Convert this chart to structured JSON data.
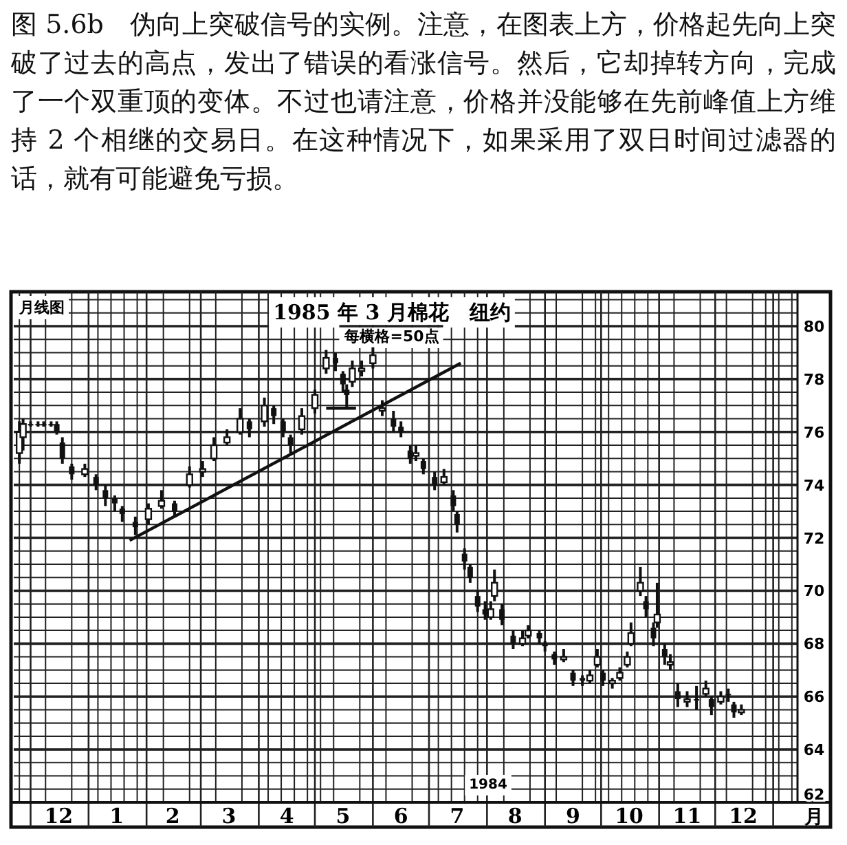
{
  "chart_data": {
    "type": "candlestick",
    "title": "图 5.6b　伪向上突破信号的实例。注意，在图表上方，价格起先向上突破了过去的高点，发出了错误的看涨信号。然后，它却掉转方向，完成了一个双重顶的变体。不过也请注意，价格并没能够在先前峰值上方维持 2 个相继的交易日。在这种情况下，如果采用了双日时间过滤器的话，就有可能避免亏损。",
    "subtitle": "1985 年 3 月棉花　纽约",
    "xlabel": "月",
    "annotations": [
      "每横格=50点",
      "月线图",
      "1984"
    ],
    "x": [
      "1983-11-25",
      "1983-11-27",
      "1983-12-01",
      "1983-12-05",
      "1983-12-08",
      "1983-12-12",
      "1983-12-15",
      "1983-12-18",
      "1983-12-23",
      "1983-12-30",
      "1984-01-05",
      "1984-01-10",
      "1984-01-15",
      "1984-01-19",
      "1984-01-26",
      "1984-02-02",
      "1984-02-09",
      "1984-02-16",
      "1984-02-24",
      "1984-03-02",
      "1984-03-08",
      "1984-03-15",
      "1984-03-22",
      "1984-03-27",
      "1984-04-04",
      "1984-04-09",
      "1984-04-14",
      "1984-04-18",
      "1984-04-24",
      "1984-05-01",
      "1984-05-07",
      "1984-05-12",
      "1984-05-16",
      "1984-05-18",
      "1984-05-21",
      "1984-05-26",
      "1984-06-01",
      "1984-06-06",
      "1984-06-12",
      "1984-06-16",
      "1984-06-21",
      "1984-06-24",
      "1984-06-28",
      "1984-07-04",
      "1984-07-09",
      "1984-07-14",
      "1984-07-16",
      "1984-07-20",
      "1984-07-23",
      "1984-07-27",
      "1984-07-31",
      "1984-08-03",
      "1984-08-05",
      "1984-08-09",
      "1984-08-15",
      "1984-08-20",
      "1984-08-23",
      "1984-08-29",
      "1984-09-01",
      "1984-09-06",
      "1984-09-11",
      "1984-09-16",
      "1984-09-21",
      "1984-09-25",
      "1984-09-29",
      "1984-10-02",
      "1984-10-07",
      "1984-10-11",
      "1984-10-15",
      "1984-10-17",
      "1984-10-22",
      "1984-10-25",
      "1984-10-29",
      "1984-10-31",
      "1984-11-04",
      "1984-11-07",
      "1984-11-11",
      "1984-11-16",
      "1984-11-21",
      "1984-11-26",
      "1984-11-29",
      "1984-12-04",
      "1984-12-08",
      "1984-12-11",
      "1984-12-15"
    ],
    "ohlc": [
      [
        75.2,
        76.4,
        74.8,
        76.0
      ],
      [
        75.8,
        76.5,
        75.3,
        76.3
      ],
      [
        76.3,
        76.4,
        76.2,
        76.3
      ],
      [
        76.3,
        76.4,
        76.2,
        76.3
      ],
      [
        76.3,
        76.4,
        76.2,
        76.3
      ],
      [
        76.3,
        76.4,
        76.2,
        76.3
      ],
      [
        76.3,
        76.4,
        75.9,
        76.0
      ],
      [
        75.6,
        75.8,
        74.8,
        75.0
      ],
      [
        74.7,
        74.8,
        74.2,
        74.4
      ],
      [
        74.4,
        74.8,
        74.3,
        74.6
      ],
      [
        74.3,
        74.4,
        73.8,
        74.0
      ],
      [
        73.8,
        74.0,
        73.2,
        73.5
      ],
      [
        73.5,
        73.6,
        73.0,
        73.3
      ],
      [
        73.1,
        73.2,
        72.6,
        72.9
      ],
      [
        72.6,
        72.8,
        72.1,
        72.4
      ],
      [
        72.7,
        73.3,
        72.5,
        73.1
      ],
      [
        73.2,
        73.8,
        73.1,
        73.4
      ],
      [
        73.3,
        73.4,
        72.8,
        73.0
      ],
      [
        74.0,
        74.7,
        73.9,
        74.4
      ],
      [
        74.5,
        74.9,
        74.3,
        74.6
      ],
      [
        75.0,
        75.8,
        74.9,
        75.5
      ],
      [
        75.6,
        76.1,
        75.5,
        75.8
      ],
      [
        76.0,
        76.9,
        75.9,
        76.5
      ],
      [
        76.4,
        76.5,
        75.8,
        76.1
      ],
      [
        76.4,
        77.3,
        76.2,
        77.0
      ],
      [
        76.9,
        77.0,
        76.3,
        76.6
      ],
      [
        76.4,
        76.5,
        75.8,
        76.0
      ],
      [
        75.8,
        75.9,
        75.2,
        75.5
      ],
      [
        76.1,
        76.9,
        75.9,
        76.6
      ],
      [
        76.9,
        77.6,
        76.7,
        77.4
      ],
      [
        78.4,
        79.1,
        78.2,
        78.8
      ],
      [
        78.8,
        79.0,
        78.3,
        78.6
      ],
      [
        78.2,
        78.3,
        77.5,
        77.8
      ],
      [
        77.6,
        77.8,
        76.9,
        77.4
      ],
      [
        77.9,
        78.7,
        77.7,
        78.4
      ],
      [
        78.3,
        78.7,
        78.1,
        78.4
      ],
      [
        78.6,
        79.2,
        78.4,
        78.9
      ],
      [
        76.8,
        77.2,
        76.6,
        76.9
      ],
      [
        76.5,
        76.8,
        76.0,
        76.2
      ],
      [
        76.2,
        76.4,
        75.8,
        76.0
      ],
      [
        75.3,
        75.5,
        74.8,
        75.0
      ],
      [
        75.1,
        75.5,
        74.9,
        75.2
      ],
      [
        74.9,
        75.0,
        74.4,
        74.6
      ],
      [
        74.3,
        74.5,
        73.8,
        74.0
      ],
      [
        74.1,
        74.6,
        74.0,
        74.3
      ],
      [
        73.6,
        73.8,
        73.0,
        73.2
      ],
      [
        72.9,
        73.0,
        72.2,
        72.5
      ],
      [
        71.4,
        71.6,
        70.8,
        71.1
      ],
      [
        70.9,
        71.0,
        70.3,
        70.5
      ],
      [
        69.8,
        70.0,
        69.2,
        69.4
      ],
      [
        69.3,
        69.6,
        68.9,
        69.1
      ],
      [
        69.0,
        69.6,
        68.9,
        69.3
      ],
      [
        69.8,
        70.8,
        69.6,
        70.3
      ],
      [
        69.3,
        69.5,
        68.7,
        68.9
      ],
      [
        68.3,
        68.5,
        67.8,
        68.0
      ],
      [
        68.0,
        68.5,
        67.9,
        68.2
      ],
      [
        68.3,
        68.7,
        68.2,
        68.5
      ],
      [
        68.4,
        68.5,
        68.0,
        68.2
      ],
      [
        68.0,
        68.1,
        67.7,
        67.9
      ],
      [
        67.6,
        67.7,
        67.2,
        67.4
      ],
      [
        67.4,
        67.8,
        67.3,
        67.5
      ],
      [
        66.9,
        67.0,
        66.4,
        66.6
      ],
      [
        66.7,
        66.8,
        66.4,
        66.6
      ],
      [
        66.6,
        67.0,
        66.5,
        66.8
      ],
      [
        67.2,
        67.8,
        67.1,
        67.5
      ],
      [
        66.9,
        67.0,
        66.4,
        66.6
      ],
      [
        66.5,
        66.7,
        66.3,
        66.6
      ],
      [
        66.7,
        67.1,
        66.6,
        66.9
      ],
      [
        67.2,
        67.7,
        67.1,
        67.5
      ],
      [
        68.0,
        68.8,
        67.9,
        68.4
      ],
      [
        70.0,
        70.9,
        69.8,
        70.3
      ],
      [
        69.6,
        69.8,
        69.0,
        69.3
      ],
      [
        68.6,
        68.8,
        67.9,
        68.2
      ],
      [
        68.8,
        70.3,
        68.6,
        69.1
      ],
      [
        67.8,
        68.0,
        67.2,
        67.5
      ],
      [
        67.2,
        67.6,
        67.0,
        67.3
      ],
      [
        66.2,
        66.5,
        65.6,
        65.9
      ],
      [
        65.8,
        66.2,
        65.6,
        65.9
      ],
      [
        65.9,
        66.4,
        65.5,
        65.9
      ],
      [
        66.1,
        66.6,
        66.0,
        66.3
      ],
      [
        65.9,
        66.0,
        65.3,
        65.6
      ],
      [
        65.8,
        66.2,
        65.7,
        66.0
      ],
      [
        66.1,
        66.3,
        65.8,
        66.1
      ],
      [
        65.7,
        65.8,
        65.2,
        65.4
      ],
      [
        65.4,
        65.7,
        65.3,
        65.5
      ]
    ],
    "color": "#111111",
    "series": [
      {
        "type": "line",
        "color": "#111111",
        "x": [
          "1984-01-23",
          "1984-07-18"
        ],
        "values": [
          71.9,
          78.6
        ]
      },
      {
        "type": "line",
        "color": "#111111",
        "x": [
          "1984-05-07",
          "1984-05-23"
        ],
        "values": [
          76.9,
          76.9
        ]
      }
    ],
    "xlim": [
      "1983-11-22",
      "1985-01-14"
    ],
    "ylim": [
      62,
      81.3
    ],
    "yticks": [
      62,
      64,
      66,
      68,
      70,
      72,
      74,
      76,
      78,
      80
    ],
    "xticks": [
      {
        "value": "1983-12-01",
        "label": null
      },
      {
        "value": "1983-12-16",
        "label": "12"
      },
      {
        "value": "1984-01-01",
        "label": null
      },
      {
        "value": "1984-01-16",
        "label": "1"
      },
      {
        "value": "1984-02-01",
        "label": null
      },
      {
        "value": "1984-02-15",
        "label": "2"
      },
      {
        "value": "1984-03-01",
        "label": null
      },
      {
        "value": "1984-03-16",
        "label": "3"
      },
      {
        "value": "1984-04-01",
        "label": null
      },
      {
        "value": "1984-04-16",
        "label": "4"
      },
      {
        "value": "1984-05-01",
        "label": null
      },
      {
        "value": "1984-05-16",
        "label": "5"
      },
      {
        "value": "1984-06-01",
        "label": null
      },
      {
        "value": "1984-06-16",
        "label": "6"
      },
      {
        "value": "1984-07-01",
        "label": null
      },
      {
        "value": "1984-07-16",
        "label": "7"
      },
      {
        "value": "1984-08-01",
        "label": null
      },
      {
        "value": "1984-08-16",
        "label": "8"
      },
      {
        "value": "1984-09-01",
        "label": null
      },
      {
        "value": "1984-09-16",
        "label": "9"
      },
      {
        "value": "1984-10-01",
        "label": null
      },
      {
        "value": "1984-10-16",
        "label": "10"
      },
      {
        "value": "1984-11-01",
        "label": null
      },
      {
        "value": "1984-11-16",
        "label": "11"
      },
      {
        "value": "1984-12-01",
        "label": null
      },
      {
        "value": "1984-12-16",
        "label": "12"
      },
      {
        "value": "1985-01-01",
        "label": null
      }
    ],
    "grid": true
  }
}
